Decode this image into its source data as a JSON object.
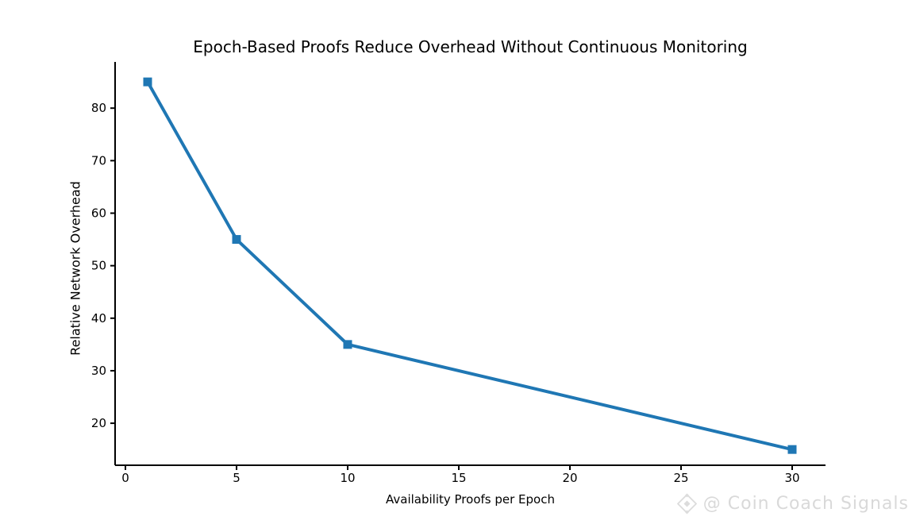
{
  "title": "Epoch-Based Proofs Reduce Overhead Without Continuous Monitoring",
  "watermark": {
    "logo_icon": "diamond-crypto-logo-icon",
    "text": "@ Coin Coach Signals",
    "color": "#d9d9d9"
  },
  "chart_data": {
    "type": "line",
    "x": [
      1,
      5,
      10,
      30
    ],
    "y": [
      85,
      55,
      35,
      15
    ],
    "title": "Epoch-Based Proofs Reduce Overhead Without Continuous Monitoring",
    "xlabel": "Availability Proofs per Epoch",
    "ylabel": "Relative Network Overhead",
    "xticks": [
      0,
      5,
      10,
      15,
      20,
      25,
      30
    ],
    "yticks": [
      20,
      30,
      40,
      50,
      60,
      70,
      80
    ],
    "xlim": [
      -0.464,
      31.5
    ],
    "ylim": [
      12.0,
      88.8
    ],
    "grid": false,
    "legend": "none",
    "line_color": "#1f77b4",
    "marker": "square",
    "marker_size": 11,
    "line_width": 4,
    "axis_color": "#000000",
    "tick_font_size": 15
  }
}
